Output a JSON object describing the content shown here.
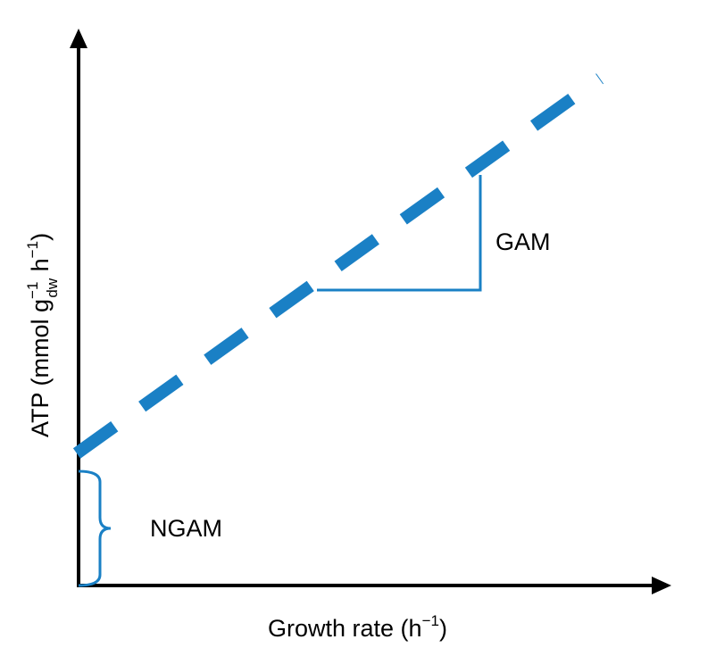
{
  "colors": {
    "axis": "#000000",
    "accent": "#1a80c5",
    "background": "#ffffff"
  },
  "labels": {
    "gam": "GAM",
    "ngam": "NGAM",
    "x_axis": {
      "base": "Growth rate (h",
      "exp": "−1",
      "close": ")"
    },
    "y_axis": {
      "lead": "ATP (mmol g",
      "exp1": "−1",
      "sub": "dw",
      "mid": " h",
      "exp2": "−1",
      "close": ")"
    }
  }
}
